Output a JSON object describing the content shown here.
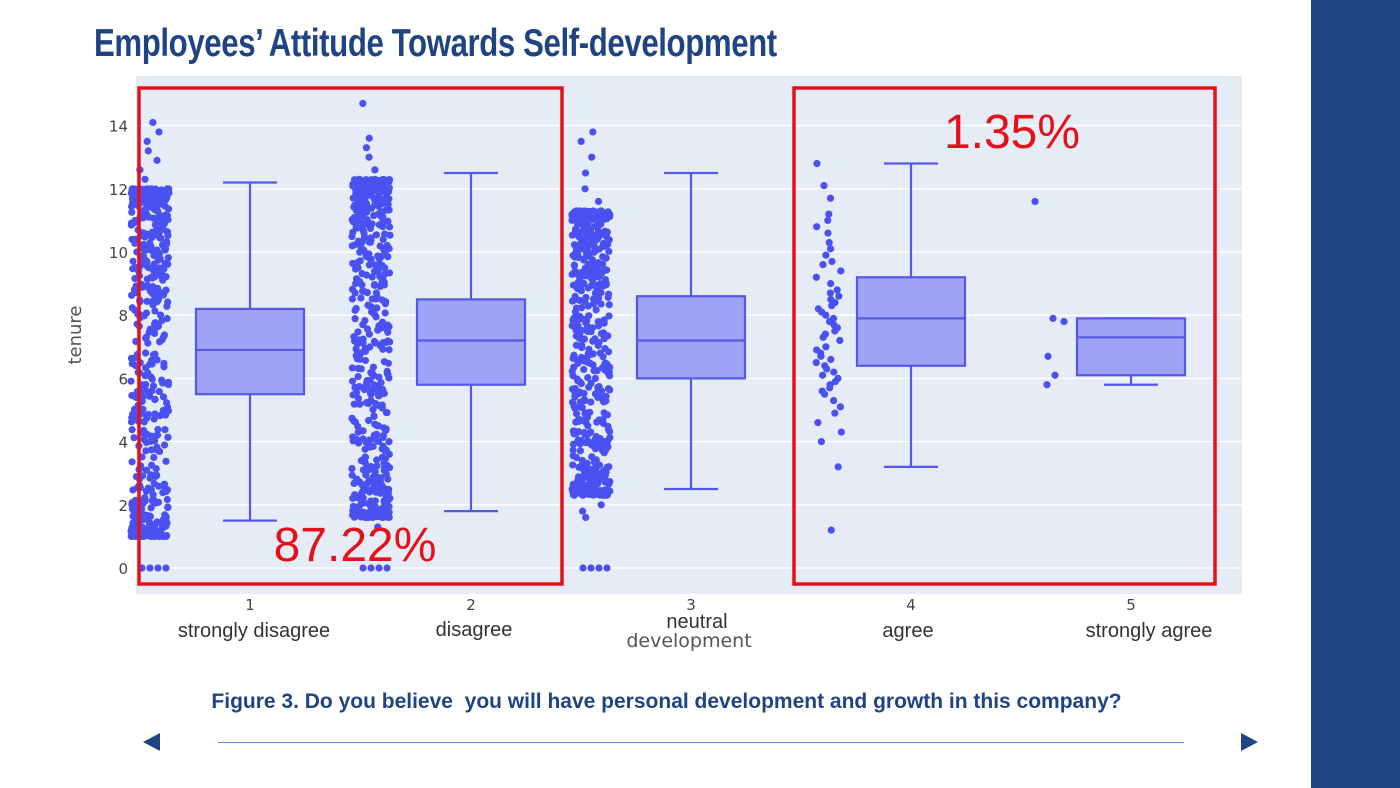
{
  "slide": {
    "title": "Employees’ Attitude Towards Self-development",
    "caption": "Figure 3. Do you believe  you will have personal development and growth in this company?",
    "colors": {
      "title": "#1f4484",
      "sidebar": "#1f4484",
      "caption": "#1f4484",
      "divider": "#5b8fd6",
      "nav": "#1f4484",
      "highlight": "#e3121a"
    },
    "nav": {
      "prev_icon": "triangle-left-icon",
      "next_icon": "triangle-right-icon"
    }
  },
  "chart_data": {
    "type": "box",
    "xlabel": "development",
    "ylabel": "tenure",
    "ylim": [
      -0.8,
      15
    ],
    "y_ticks": [
      0,
      2,
      4,
      6,
      8,
      10,
      12,
      14
    ],
    "grid": true,
    "colors": {
      "plot_bg": "#e5ecf6",
      "box_fill": "#9ea3f7",
      "box_line": "#5359e6",
      "points": "#4a51f0",
      "tick_text": "#444444",
      "label_text": "#555555"
    },
    "categories": [
      "1",
      "2",
      "3",
      "4",
      "5"
    ],
    "category_labels": [
      "strongly disagree",
      "disagree",
      "neutral",
      "agree",
      "strongly agree"
    ],
    "boxes": [
      {
        "x": "1",
        "lower_fence": 1.5,
        "q1": 5.5,
        "median": 6.9,
        "q3": 8.2,
        "upper_fence": 12.2
      },
      {
        "x": "2",
        "lower_fence": 1.8,
        "q1": 5.8,
        "median": 7.2,
        "q3": 8.5,
        "upper_fence": 12.5
      },
      {
        "x": "3",
        "lower_fence": 2.5,
        "q1": 6.0,
        "median": 7.2,
        "q3": 8.6,
        "upper_fence": 12.5
      },
      {
        "x": "4",
        "lower_fence": 3.2,
        "q1": 6.4,
        "median": 7.9,
        "q3": 9.2,
        "upper_fence": 12.8
      },
      {
        "x": "5",
        "lower_fence": 5.8,
        "q1": 6.1,
        "median": 7.3,
        "q3": 7.9,
        "upper_fence": 7.9
      }
    ],
    "points_4": [
      12.8,
      12.1,
      11.7,
      11.2,
      11.0,
      10.8,
      10.6,
      10.3,
      10.1,
      9.9,
      9.7,
      9.6,
      9.4,
      9.2,
      9.0,
      8.8,
      8.7,
      8.6,
      8.5,
      8.4,
      8.3,
      8.2,
      8.1,
      8.0,
      7.9,
      7.8,
      7.7,
      7.6,
      7.5,
      7.4,
      7.3,
      7.2,
      7.0,
      6.9,
      6.8,
      6.7,
      6.6,
      6.5,
      6.4,
      6.3,
      6.2,
      6.1,
      6.0,
      5.9,
      5.8,
      5.7,
      5.6,
      5.5,
      5.3,
      5.1,
      4.9,
      4.6,
      4.3,
      4.0,
      3.2,
      1.2
    ],
    "points_5": [
      11.6,
      7.9,
      7.8,
      6.7,
      6.1,
      5.8
    ],
    "annotations": [
      {
        "text": "87.22%",
        "group": [
          "1",
          "2"
        ]
      },
      {
        "text": "1.35%",
        "group": [
          "4",
          "5"
        ]
      }
    ]
  }
}
